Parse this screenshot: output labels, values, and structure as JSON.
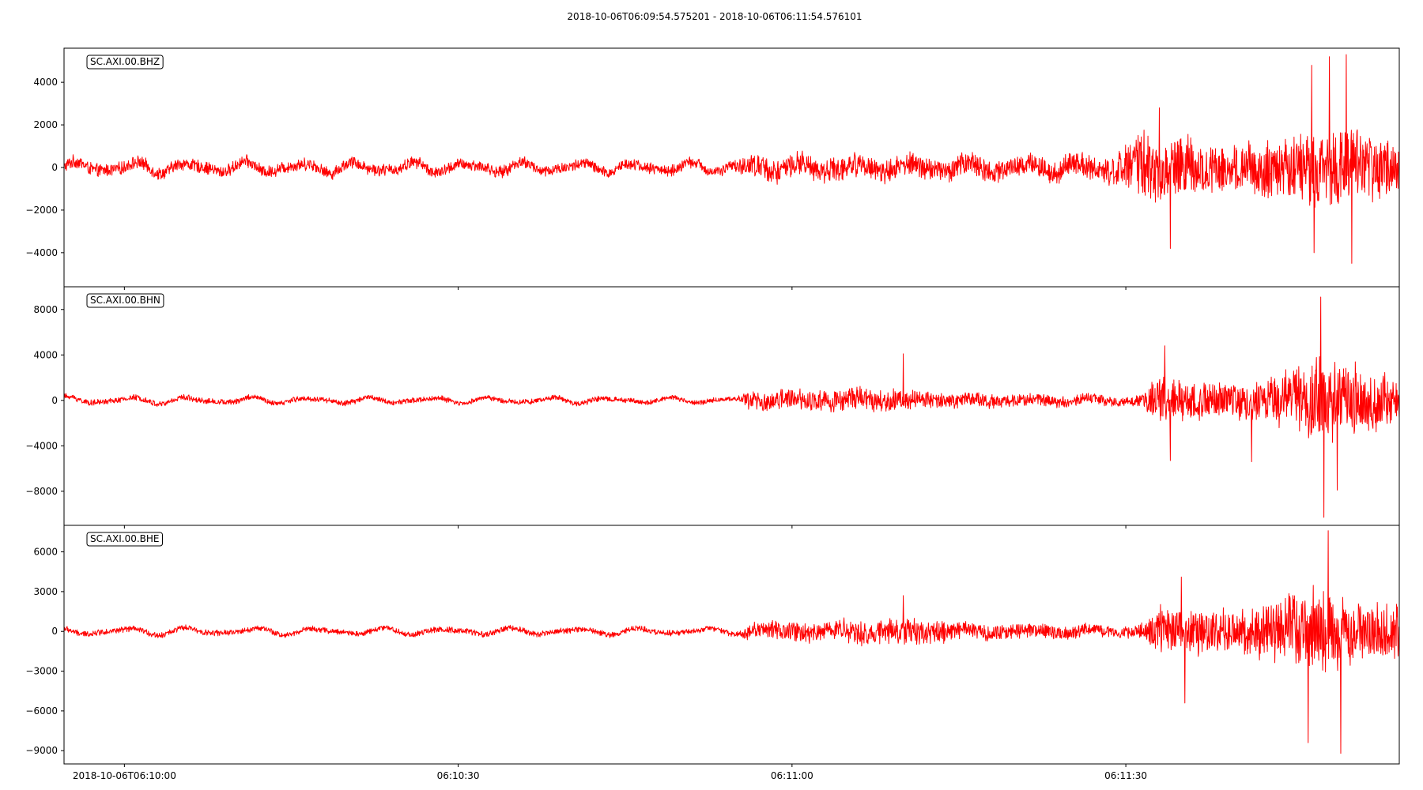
{
  "chart_data": {
    "type": "line",
    "title": "2018-10-06T06:09:54.575201  -  2018-10-06T06:11:54.576101",
    "xlabel": "",
    "x_range": [
      "2018-10-06T06:09:54.575201",
      "2018-10-06T06:11:54.576101"
    ],
    "x_ticks": [
      {
        "time": "2018-10-06T06:10:00",
        "label": "2018-10-06T06:10:00"
      },
      {
        "time": "2018-10-06T06:10:30",
        "label": "06:10:30"
      },
      {
        "time": "2018-10-06T06:11:00",
        "label": "06:11:00"
      },
      {
        "time": "2018-10-06T06:11:30",
        "label": "06:11:30"
      }
    ],
    "grid": false,
    "line_color": "#ff0000",
    "series": [
      {
        "name": "SC.AXI.00.BHZ",
        "ylim": [
          -5600,
          5600
        ],
        "yticks": [
          -4000,
          -2000,
          0,
          2000,
          4000
        ],
        "ytick_labels": [
          "−4000",
          "−2000",
          "0",
          "2000",
          "4000"
        ],
        "envelope": [
          {
            "time": "2018-10-06T06:09:54.6",
            "half_amplitude": 350,
            "swell": 300
          },
          {
            "time": "2018-10-06T06:10:55.0",
            "half_amplitude": 300,
            "swell": 250
          },
          {
            "time": "2018-10-06T06:10:56.0",
            "half_amplitude": 650,
            "swell": 200
          },
          {
            "time": "2018-10-06T06:11:28.0",
            "half_amplitude": 600,
            "swell": 300
          },
          {
            "time": "2018-10-06T06:11:32.0",
            "half_amplitude": 1800,
            "swell": 200
          },
          {
            "time": "2018-10-06T06:11:40.0",
            "half_amplitude": 1200,
            "swell": 150
          },
          {
            "time": "2018-10-06T06:11:47.0",
            "half_amplitude": 2200,
            "swell": 150
          },
          {
            "time": "2018-10-06T06:11:54.5",
            "half_amplitude": 1500,
            "swell": 150
          }
        ],
        "peaks": [
          {
            "time": "2018-10-06T06:11:33.0",
            "value": 2800
          },
          {
            "time": "2018-10-06T06:11:34.0",
            "value": -3800
          },
          {
            "time": "2018-10-06T06:11:46.7",
            "value": 4800
          },
          {
            "time": "2018-10-06T06:11:48.3",
            "value": 5200
          },
          {
            "time": "2018-10-06T06:11:49.8",
            "value": 5300
          },
          {
            "time": "2018-10-06T06:11:46.9",
            "value": -4000
          },
          {
            "time": "2018-10-06T06:11:50.3",
            "value": -4500
          }
        ]
      },
      {
        "name": "SC.AXI.00.BHN",
        "ylim": [
          -11000,
          10000
        ],
        "yticks": [
          -8000,
          -4000,
          0,
          4000,
          8000
        ],
        "ytick_labels": [
          "−8000",
          "−4000",
          "0",
          "4000",
          "8000"
        ],
        "envelope": [
          {
            "time": "2018-10-06T06:09:54.6",
            "half_amplitude": 300,
            "swell": 350
          },
          {
            "time": "2018-10-06T06:10:55.0",
            "half_amplitude": 250,
            "swell": 250
          },
          {
            "time": "2018-10-06T06:10:56.0",
            "half_amplitude": 900,
            "swell": 250
          },
          {
            "time": "2018-10-06T06:11:08.0",
            "half_amplitude": 1200,
            "swell": 200
          },
          {
            "time": "2018-10-06T06:11:15.0",
            "half_amplitude": 700,
            "swell": 200
          },
          {
            "time": "2018-10-06T06:11:31.0",
            "half_amplitude": 500,
            "swell": 200
          },
          {
            "time": "2018-10-06T06:11:33.0",
            "half_amplitude": 2200,
            "swell": 200
          },
          {
            "time": "2018-10-06T06:11:42.0",
            "half_amplitude": 1800,
            "swell": 150
          },
          {
            "time": "2018-10-06T06:11:47.0",
            "half_amplitude": 4500,
            "swell": 150
          },
          {
            "time": "2018-10-06T06:11:54.5",
            "half_amplitude": 2500,
            "swell": 150
          }
        ],
        "peaks": [
          {
            "time": "2018-10-06T06:11:10.0",
            "value": 4100
          },
          {
            "time": "2018-10-06T06:11:33.5",
            "value": 4800
          },
          {
            "time": "2018-10-06T06:11:34.0",
            "value": -5300
          },
          {
            "time": "2018-10-06T06:11:41.3",
            "value": -5400
          },
          {
            "time": "2018-10-06T06:11:47.5",
            "value": 9100
          },
          {
            "time": "2018-10-06T06:11:47.8",
            "value": -10300
          },
          {
            "time": "2018-10-06T06:11:49.0",
            "value": -7900
          }
        ]
      },
      {
        "name": "SC.AXI.00.BHE",
        "ylim": [
          -10000,
          8000
        ],
        "yticks": [
          -9000,
          -6000,
          -3000,
          0,
          3000,
          6000
        ],
        "ytick_labels": [
          "−9000",
          "−6000",
          "−3000",
          "0",
          "3000",
          "6000"
        ],
        "envelope": [
          {
            "time": "2018-10-06T06:09:54.6",
            "half_amplitude": 250,
            "swell": 300
          },
          {
            "time": "2018-10-06T06:10:55.0",
            "half_amplitude": 250,
            "swell": 250
          },
          {
            "time": "2018-10-06T06:10:56.0",
            "half_amplitude": 700,
            "swell": 200
          },
          {
            "time": "2018-10-06T06:11:04.0",
            "half_amplitude": 900,
            "swell": 200
          },
          {
            "time": "2018-10-06T06:11:10.0",
            "half_amplitude": 1200,
            "swell": 150
          },
          {
            "time": "2018-10-06T06:11:16.0",
            "half_amplitude": 700,
            "swell": 150
          },
          {
            "time": "2018-10-06T06:11:31.0",
            "half_amplitude": 500,
            "swell": 150
          },
          {
            "time": "2018-10-06T06:11:33.0",
            "half_amplitude": 2000,
            "swell": 150
          },
          {
            "time": "2018-10-06T06:11:40.0",
            "half_amplitude": 1800,
            "swell": 150
          },
          {
            "time": "2018-10-06T06:11:47.0",
            "half_amplitude": 3800,
            "swell": 150
          },
          {
            "time": "2018-10-06T06:11:54.5",
            "half_amplitude": 2200,
            "swell": 150
          }
        ],
        "peaks": [
          {
            "time": "2018-10-06T06:11:10.0",
            "value": 2700
          },
          {
            "time": "2018-10-06T06:11:35.0",
            "value": 4100
          },
          {
            "time": "2018-10-06T06:11:35.3",
            "value": -5400
          },
          {
            "time": "2018-10-06T06:11:46.4",
            "value": -8400
          },
          {
            "time": "2018-10-06T06:11:48.2",
            "value": 7600
          },
          {
            "time": "2018-10-06T06:11:49.3",
            "value": -9200
          }
        ]
      }
    ]
  }
}
